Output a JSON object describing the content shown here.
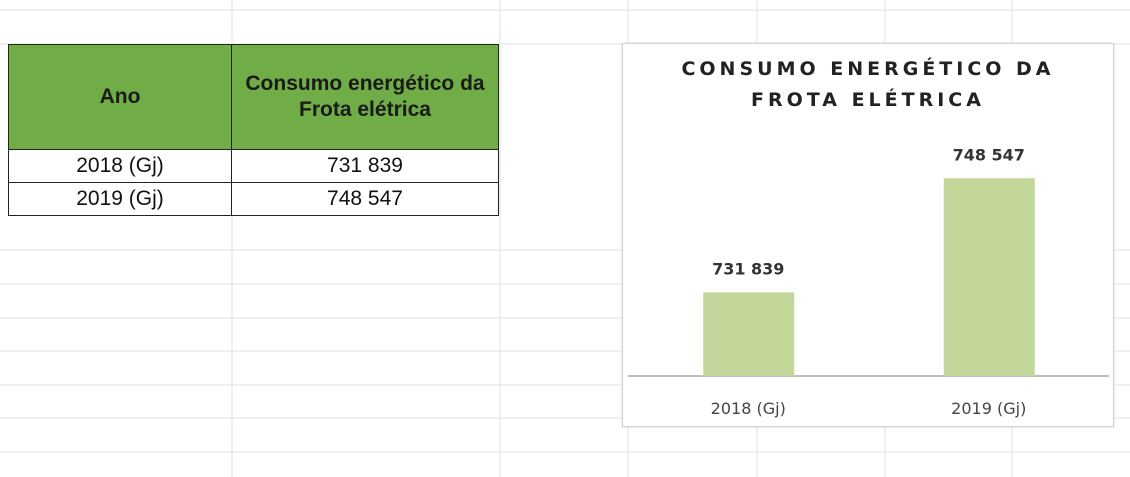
{
  "table": {
    "header": [
      "Ano",
      "Consumo energético da Frota elétrica"
    ],
    "rows": [
      [
        "2018 (Gj)",
        "731 839"
      ],
      [
        "2019 (Gj)",
        "748 547"
      ]
    ]
  },
  "chart_data": {
    "type": "bar",
    "title": "CONSUMO ENERGÉTICO DA FROTA ELÉTRICA",
    "categories": [
      "2018 (Gj)",
      "2019 (Gj)"
    ],
    "values": [
      731839,
      748547
    ],
    "value_labels": [
      "731 839",
      "748 547"
    ],
    "color": "#c4d79b",
    "ylim": [
      719600,
      754000
    ]
  }
}
